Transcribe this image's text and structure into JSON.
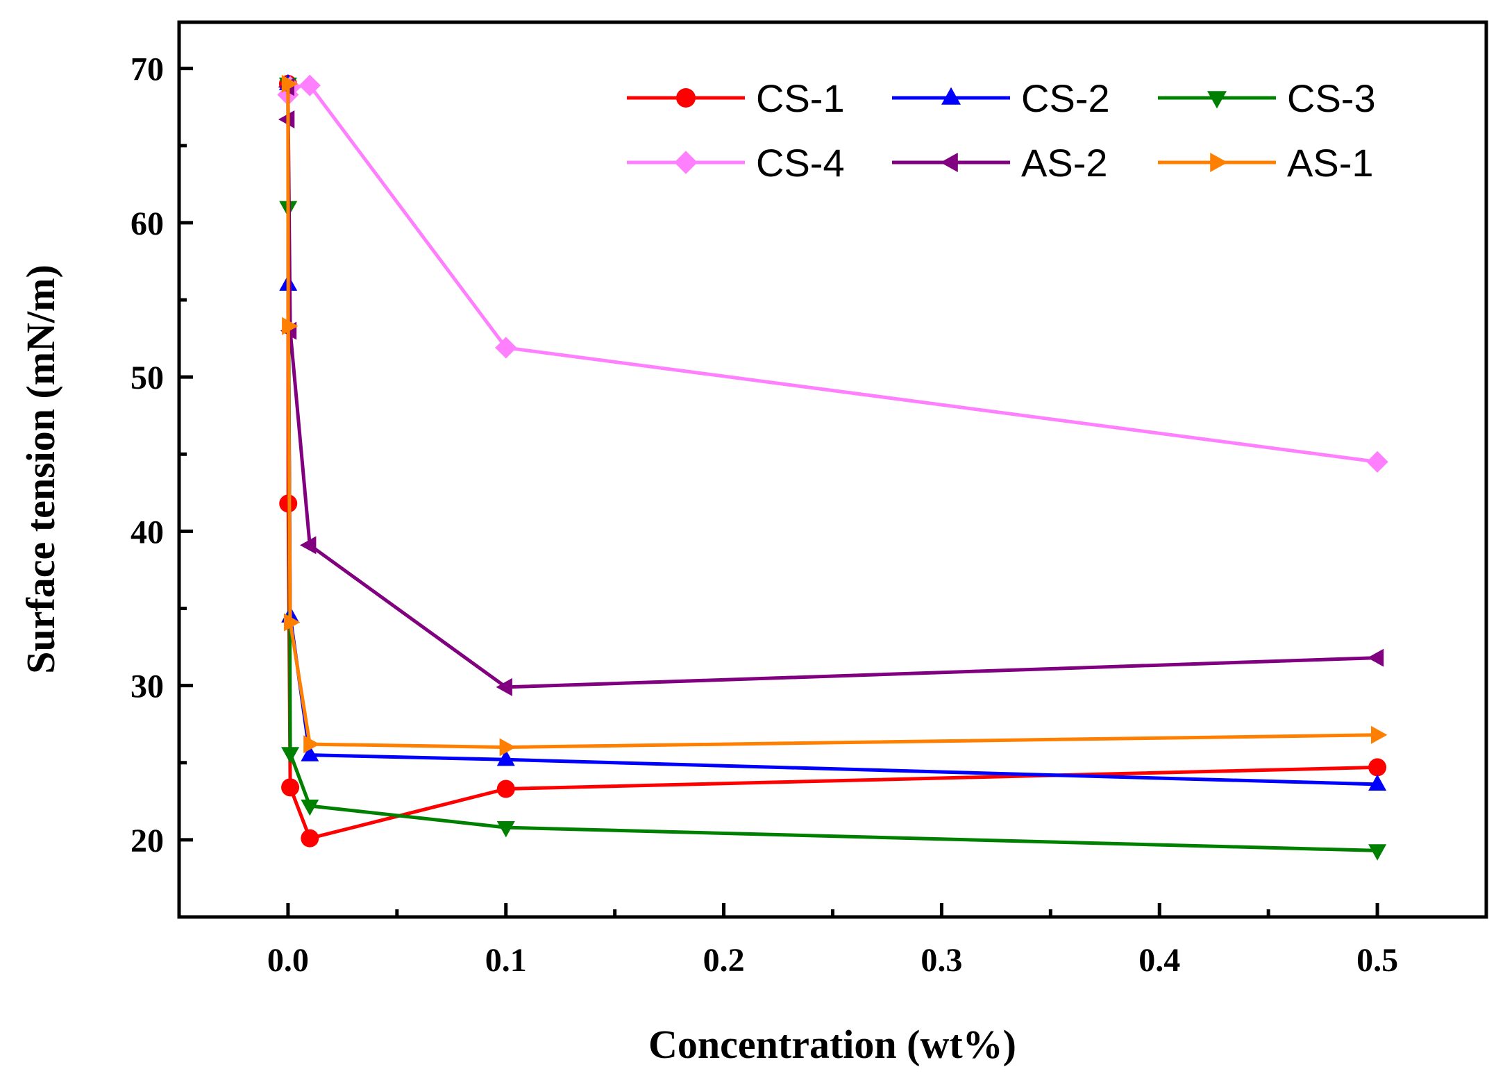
{
  "chart_data": {
    "type": "line",
    "title": "",
    "xlabel": "Concentration (wt%)",
    "ylabel": "Surface tension (mN/m)",
    "xlim": [
      -0.05,
      0.55
    ],
    "ylim": [
      15,
      73
    ],
    "xticks": [
      0.0,
      0.1,
      0.2,
      0.3,
      0.4,
      0.5
    ],
    "xtick_labels": [
      "0.0",
      "0.1",
      "0.2",
      "0.3",
      "0.4",
      "0.5"
    ],
    "yticks": [
      20,
      30,
      40,
      50,
      60,
      70
    ],
    "ytick_labels": [
      "20",
      "30",
      "40",
      "50",
      "60",
      "70"
    ],
    "grid": false,
    "legend_position": "top-right",
    "series": [
      {
        "name": "CS-1",
        "color": "#ff0000",
        "marker": "circle",
        "x": [
          0.0,
          0.0001,
          0.001,
          0.01,
          0.1,
          0.5
        ],
        "y": [
          69.0,
          41.8,
          23.4,
          20.1,
          23.3,
          24.7
        ]
      },
      {
        "name": "CS-2",
        "color": "#0000ff",
        "marker": "triangle-up",
        "x": [
          0.0,
          0.0001,
          0.001,
          0.01,
          0.1,
          0.5
        ],
        "y": [
          69.0,
          56.0,
          34.5,
          25.5,
          25.2,
          23.6
        ]
      },
      {
        "name": "CS-3",
        "color": "#008000",
        "marker": "triangle-down",
        "x": [
          0.0,
          0.0001,
          0.001,
          0.01,
          0.1,
          0.5
        ],
        "y": [
          69.0,
          61.0,
          25.6,
          22.2,
          20.8,
          19.3
        ]
      },
      {
        "name": "CS-4",
        "color": "#ff80ff",
        "marker": "diamond",
        "x": [
          0.0,
          0.001,
          0.01,
          0.1,
          0.5
        ],
        "y": [
          68.3,
          68.8,
          68.9,
          51.9,
          44.5
        ]
      },
      {
        "name": "AS-2",
        "color": "#800080",
        "marker": "triangle-left",
        "x": [
          0.0,
          0.0001,
          0.001,
          0.01,
          0.1,
          0.5
        ],
        "y": [
          68.8,
          66.7,
          53.0,
          39.1,
          29.9,
          31.8
        ]
      },
      {
        "name": "AS-1",
        "color": "#ff8000",
        "marker": "triangle-right",
        "x": [
          0.0,
          0.0001,
          0.001,
          0.01,
          0.1,
          0.5
        ],
        "y": [
          69.0,
          53.3,
          34.1,
          26.2,
          26.0,
          26.8
        ]
      }
    ]
  }
}
